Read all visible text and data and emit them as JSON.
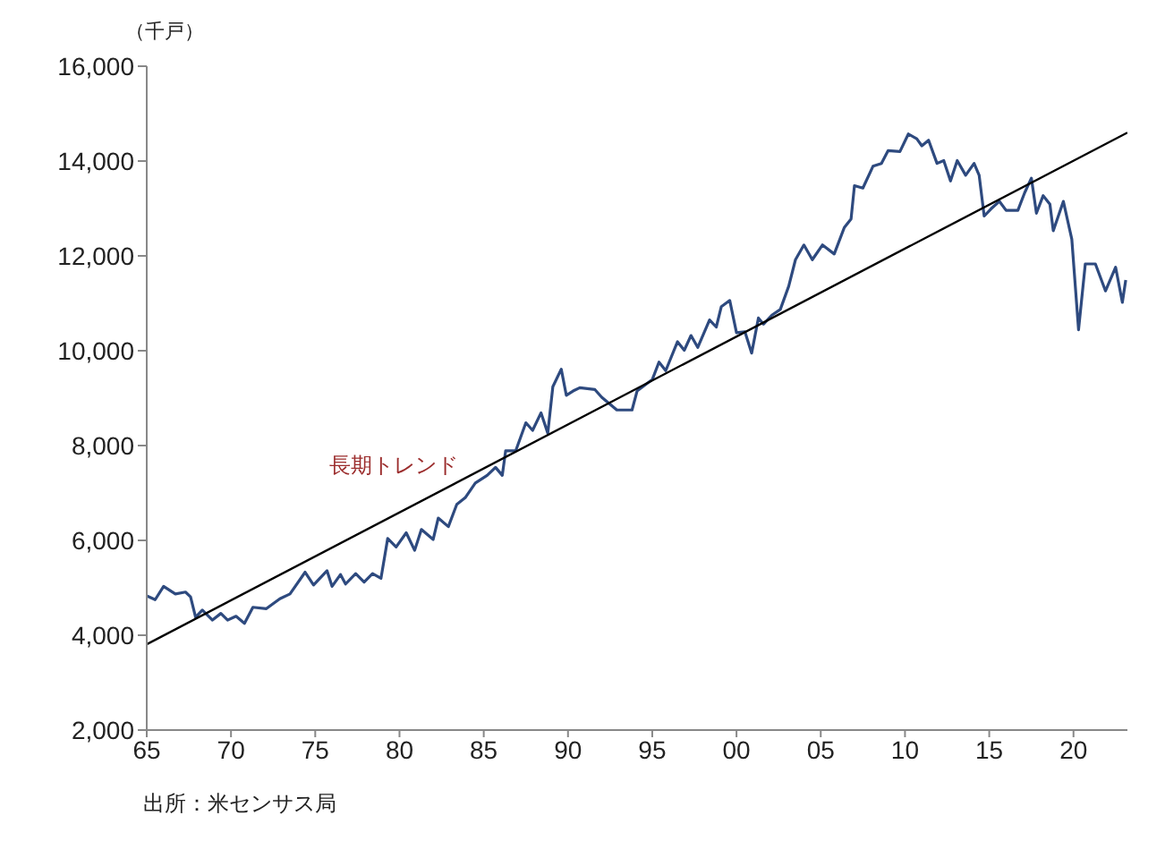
{
  "chart_data": {
    "type": "line",
    "ylabel": "（千戸）",
    "annotations": [
      "長期トレンド",
      "出所：米センサス局"
    ],
    "xlim": [
      1965,
      2023.2
    ],
    "xticks": [
      {
        "value": 1965,
        "label": "65"
      },
      {
        "value": 1970,
        "label": "70"
      },
      {
        "value": 1975,
        "label": "75"
      },
      {
        "value": 1980,
        "label": "80"
      },
      {
        "value": 1985,
        "label": "85"
      },
      {
        "value": 1990,
        "label": "90"
      },
      {
        "value": 1995,
        "label": "95"
      },
      {
        "value": 2000,
        "label": "00"
      },
      {
        "value": 2005,
        "label": "05"
      },
      {
        "value": 2010,
        "label": "10"
      },
      {
        "value": 2015,
        "label": "15"
      },
      {
        "value": 2020,
        "label": "20"
      }
    ],
    "ylim": [
      2000,
      16000
    ],
    "yticks": [
      {
        "value": 2000,
        "label": "2,000"
      },
      {
        "value": 4000,
        "label": "4,000"
      },
      {
        "value": 6000,
        "label": "6,000"
      },
      {
        "value": 8000,
        "label": "8,000"
      },
      {
        "value": 10000,
        "label": "10,000"
      },
      {
        "value": 12000,
        "label": "12,000"
      },
      {
        "value": 14000,
        "label": "14,000"
      },
      {
        "value": 16000,
        "label": "16,000"
      }
    ],
    "grid": false,
    "series": [
      {
        "color": "#2e4a7f",
        "x": [
          1965,
          1965.5,
          1966,
          1966.7,
          1967.3,
          1967.6,
          1967.9,
          1968.3,
          1968.9,
          1969.4,
          1969.8,
          1970.3,
          1970.8,
          1971.3,
          1972.1,
          1972.9,
          1973.5,
          1974.4,
          1974.9,
          1975.7,
          1976,
          1976.5,
          1976.8,
          1977.4,
          1977.9,
          1978.4,
          1978.9,
          1979.3,
          1979.8,
          1980.4,
          1980.9,
          1981.3,
          1982,
          1982.3,
          1982.9,
          1983.4,
          1983.9,
          1984.5,
          1985.2,
          1985.7,
          1986.1,
          1986.3,
          1986.9,
          1987.5,
          1987.9,
          1988.4,
          1988.8,
          1989.1,
          1989.6,
          1989.9,
          1990.3,
          1990.7,
          1991.6,
          1992,
          1992.9,
          1993.8,
          1994.1,
          1995,
          1995.4,
          1995.8,
          1996.5,
          1996.9,
          1997.3,
          1997.7,
          1998.4,
          1998.8,
          1999.1,
          1999.6,
          2000,
          2000.5,
          2000.9,
          2001.3,
          2001.6,
          2002.1,
          2002.6,
          2003.1,
          2003.5,
          2004,
          2004.5,
          2005.1,
          2005.8,
          2006.4,
          2006.8,
          2007,
          2007.5,
          2008.1,
          2008.6,
          2009,
          2009.7,
          2010.2,
          2010.7,
          2011,
          2011.4,
          2011.9,
          2012.3,
          2012.7,
          2013.1,
          2013.6,
          2014.1,
          2014.4,
          2014.7,
          2015.1,
          2015.6,
          2016,
          2016.7,
          2017.1,
          2017.5,
          2017.8,
          2018.2,
          2018.6,
          2018.8,
          2019.4,
          2019.9,
          2020.3,
          2020.7,
          2021.3,
          2021.9,
          2022.5,
          2022.9,
          2023.1
        ],
        "values": [
          4830,
          4750,
          5030,
          4870,
          4910,
          4810,
          4380,
          4530,
          4320,
          4460,
          4320,
          4400,
          4250,
          4590,
          4560,
          4770,
          4870,
          5330,
          5060,
          5360,
          5030,
          5280,
          5080,
          5300,
          5120,
          5300,
          5200,
          6040,
          5860,
          6160,
          5790,
          6230,
          6020,
          6470,
          6290,
          6760,
          6900,
          7210,
          7370,
          7540,
          7370,
          7890,
          7890,
          8480,
          8320,
          8690,
          8260,
          9240,
          9610,
          9060,
          9150,
          9220,
          9180,
          9020,
          8750,
          8750,
          9150,
          9390,
          9760,
          9580,
          10190,
          10010,
          10320,
          10070,
          10650,
          10500,
          10930,
          11060,
          10380,
          10400,
          9950,
          10690,
          10560,
          10750,
          10870,
          11360,
          11920,
          12230,
          11920,
          12230,
          12040,
          12600,
          12780,
          13480,
          13430,
          13890,
          13950,
          14220,
          14200,
          14570,
          14470,
          14320,
          14440,
          13950,
          14010,
          13580,
          14010,
          13700,
          13950,
          13700,
          12840,
          12990,
          13150,
          12960,
          12960,
          13330,
          13640,
          12900,
          13270,
          13090,
          12530,
          13150,
          12350,
          10440,
          11830,
          11830,
          11260,
          11760,
          11020,
          11490
        ]
      },
      {
        "color": "#000000",
        "x": [
          1965,
          2023.2
        ],
        "values": [
          3810,
          14600
        ]
      }
    ]
  }
}
